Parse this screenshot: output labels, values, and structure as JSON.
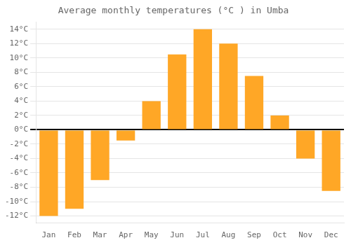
{
  "chart_data": {
    "type": "bar",
    "title": "Average monthly temperatures (°C ) in Umba",
    "categories": [
      "Jan",
      "Feb",
      "Mar",
      "Apr",
      "May",
      "Jun",
      "Jul",
      "Aug",
      "Sep",
      "Oct",
      "Nov",
      "Dec"
    ],
    "values": [
      -12,
      -11,
      -7,
      -1.5,
      4,
      10.5,
      14,
      12,
      7.5,
      2,
      -4,
      -8.5
    ],
    "color": "#FFA726",
    "ylim": [
      -13,
      15
    ],
    "yticks": [
      {
        "value": -12,
        "label": "-12°C"
      },
      {
        "value": -10,
        "label": "-10°C"
      },
      {
        "value": -8,
        "label": "-8°C"
      },
      {
        "value": -6,
        "label": "-6°C"
      },
      {
        "value": -4,
        "label": "-4°C"
      },
      {
        "value": -2,
        "label": "-2°C"
      },
      {
        "value": 0,
        "label": "0°C"
      },
      {
        "value": 2,
        "label": "2°C"
      },
      {
        "value": 4,
        "label": "4°C"
      },
      {
        "value": 6,
        "label": "6°C"
      },
      {
        "value": 8,
        "label": "8°C"
      },
      {
        "value": 10,
        "label": "10°C"
      },
      {
        "value": 12,
        "label": "12°C"
      },
      {
        "value": 14,
        "label": "14°C"
      }
    ],
    "grid": true
  }
}
